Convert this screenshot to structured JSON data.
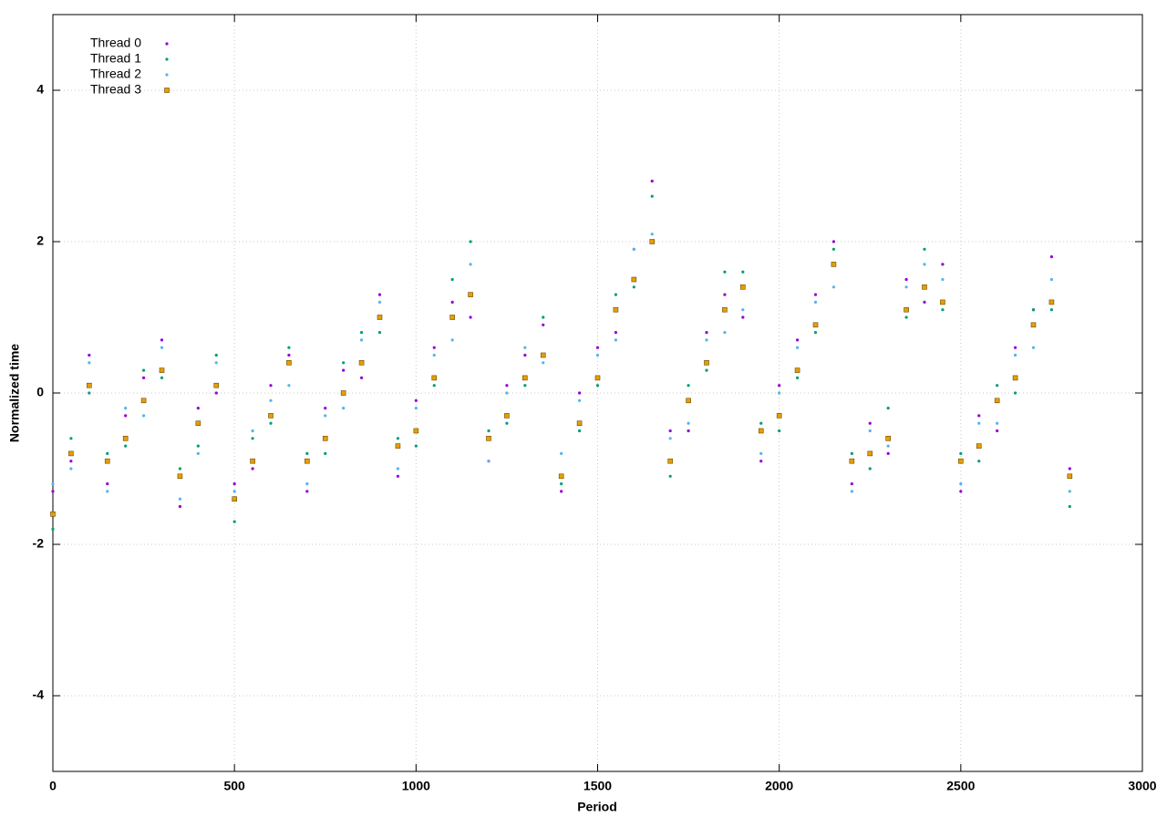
{
  "chart_data": {
    "type": "scatter",
    "xlabel": "Period",
    "ylabel": "Normalized time",
    "xlim": [
      0,
      3000
    ],
    "ylim": [
      -5,
      5
    ],
    "xticks": [
      0,
      500,
      1000,
      1500,
      2000,
      2500,
      3000
    ],
    "yticks": [
      -4,
      -2,
      0,
      2,
      4
    ],
    "grid": true,
    "legend": "top-left",
    "x": [
      0,
      50,
      100,
      150,
      200,
      250,
      300,
      350,
      400,
      450,
      500,
      550,
      600,
      650,
      700,
      750,
      800,
      850,
      900,
      950,
      1000,
      1050,
      1100,
      1150,
      1200,
      1250,
      1300,
      1350,
      1400,
      1450,
      1500,
      1550,
      1600,
      1650,
      1700,
      1750,
      1800,
      1850,
      1900,
      1950,
      2000,
      2050,
      2100,
      2150,
      2200,
      2250,
      2300,
      2350,
      2400,
      2450,
      2500,
      2550,
      2600,
      2650,
      2700,
      2750,
      2800
    ],
    "series": [
      {
        "name": "Thread 0",
        "color": "#9400d3",
        "marker": "dot",
        "values": [
          -1.3,
          -0.9,
          0.5,
          -1.2,
          -0.3,
          0.2,
          0.7,
          -1.5,
          -0.2,
          0,
          -1.2,
          -1.0,
          0.1,
          0.5,
          -1.3,
          -0.2,
          0.3,
          0.2,
          1.3,
          -1.1,
          -0.1,
          0.6,
          1.2,
          1.0,
          -0.9,
          0.1,
          0.5,
          0.9,
          -1.3,
          0,
          0.6,
          0.8,
          1.9,
          2.8,
          -0.5,
          -0.5,
          0.8,
          1.3,
          1.0,
          -0.9,
          0.1,
          0.7,
          1.3,
          2.0,
          -1.2,
          -0.4,
          -0.8,
          1.5,
          1.2,
          1.7,
          -1.3,
          -0.3,
          -0.5,
          0.6,
          1.1,
          1.8,
          -1.0
        ]
      },
      {
        "name": "Thread 1",
        "color": "#009e73",
        "marker": "dot",
        "values": [
          -1.8,
          -0.6,
          0,
          -0.8,
          -0.7,
          0.3,
          0.2,
          -1.0,
          -0.7,
          0.5,
          -1.7,
          -0.6,
          -0.4,
          0.6,
          -0.8,
          -0.8,
          0.4,
          0.8,
          0.8,
          -0.6,
          -0.7,
          0.1,
          1.5,
          2.0,
          -0.5,
          -0.4,
          0.1,
          1.0,
          -1.2,
          -0.5,
          0.1,
          1.3,
          1.4,
          2.6,
          -1.1,
          0.1,
          0.3,
          1.6,
          1.6,
          -0.4,
          -0.5,
          0.2,
          0.8,
          1.9,
          -0.8,
          -1.0,
          -0.2,
          1.0,
          1.9,
          1.1,
          -0.8,
          -0.9,
          0.1,
          0,
          1.1,
          1.1,
          -1.5
        ]
      },
      {
        "name": "Thread 2",
        "color": "#56b4e9",
        "marker": "dot",
        "values": [
          -1.2,
          -1.0,
          0.4,
          -1.3,
          -0.2,
          -0.3,
          0.6,
          -1.4,
          -0.8,
          0.4,
          -1.3,
          -0.5,
          -0.1,
          0.1,
          -1.2,
          -0.3,
          -0.2,
          0.7,
          1.2,
          -1.0,
          -0.2,
          0.5,
          0.7,
          1.7,
          -0.9,
          0,
          0.6,
          0.4,
          -0.8,
          -0.1,
          0.5,
          0.7,
          1.9,
          2.1,
          -0.6,
          -0.4,
          0.7,
          0.8,
          1.1,
          -0.8,
          0,
          0.6,
          1.2,
          1.4,
          -1.3,
          -0.5,
          -0.7,
          1.4,
          1.7,
          1.5,
          -1.2,
          -0.4,
          -0.4,
          0.5,
          0.6,
          1.5,
          -1.3
        ]
      },
      {
        "name": "Thread 3",
        "color": "#e69f00",
        "marker": "square",
        "values": [
          -1.6,
          -0.8,
          0.1,
          -0.9,
          -0.6,
          -0.1,
          0.3,
          -1.1,
          -0.4,
          0.1,
          -1.4,
          -0.9,
          -0.3,
          0.4,
          -0.9,
          -0.6,
          0,
          0.4,
          1.0,
          -0.7,
          -0.5,
          0.2,
          1.0,
          1.3,
          -0.6,
          -0.3,
          0.2,
          0.5,
          -1.1,
          -0.4,
          0.2,
          1.1,
          1.5,
          2.0,
          -0.9,
          -0.1,
          0.4,
          1.1,
          1.4,
          -0.5,
          -0.3,
          0.3,
          0.9,
          1.7,
          -0.9,
          -0.8,
          -0.6,
          1.1,
          1.4,
          1.2,
          -0.9,
          -0.7,
          -0.1,
          0.2,
          0.9,
          1.2,
          -1.1
        ]
      }
    ]
  }
}
